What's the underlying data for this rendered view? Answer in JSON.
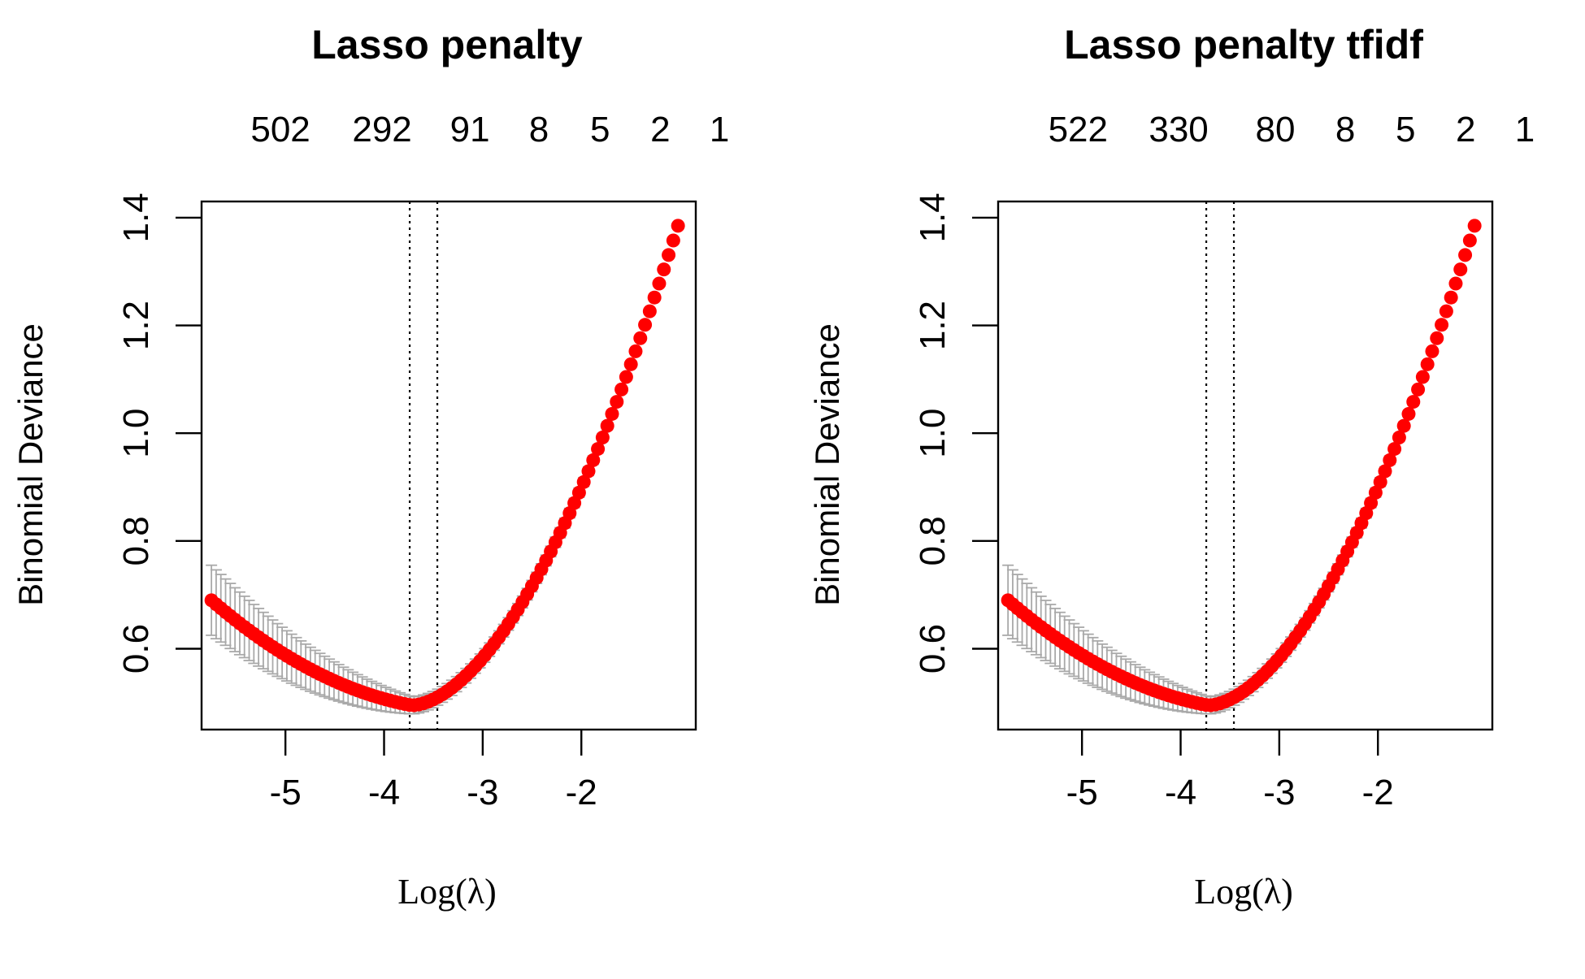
{
  "charts": [
    {
      "title": "Lasso penalty"
    },
    {
      "title": "Lasso penalty tfidf"
    }
  ],
  "chart_data": [
    {
      "type": "scatter",
      "title": "Lasso penalty",
      "xlabel": "Log(λ)",
      "ylabel": "Binomial Deviance",
      "xlim": [
        -5.85,
        -0.84
      ],
      "ylim": [
        0.45,
        1.43
      ],
      "x_ticks": [
        -5,
        -4,
        -3,
        -2
      ],
      "x_tick_labels": [
        "-5",
        "-4",
        "-3",
        "-2"
      ],
      "y_ticks": [
        0.6,
        0.8,
        1.0,
        1.2,
        1.4
      ],
      "y_tick_labels": [
        "0.6",
        "0.8",
        "1.0",
        "1.2",
        "1.4"
      ],
      "top_axis": {
        "positions": [
          -5.05,
          -4.02,
          -3.13,
          -2.43,
          -1.81,
          -1.2,
          -0.6
        ],
        "labels": [
          "502",
          "292",
          "91",
          "8",
          "5",
          "2",
          "1"
        ]
      },
      "vlines": [
        -3.74,
        -3.46
      ],
      "grid": false,
      "series": [
        {
          "color": "#ff0000",
          "error_color": "#a9a9a9",
          "curve": {
            "x_start": -5.75,
            "x_end": -1.02,
            "n": 100,
            "x_min": -3.72,
            "y_min": 0.495,
            "left_y": 0.69,
            "right_y": 1.385,
            "right_power": 1.75,
            "se_left": 0.065,
            "se_right": 0.004,
            "se_min": 0.016
          }
        }
      ]
    },
    {
      "type": "scatter",
      "title": "Lasso penalty tfidf",
      "xlabel": "Log(λ)",
      "ylabel": "Binomial Deviance",
      "xlim": [
        -5.85,
        -0.84
      ],
      "ylim": [
        0.45,
        1.43
      ],
      "x_ticks": [
        -5,
        -4,
        -3,
        -2
      ],
      "x_tick_labels": [
        "-5",
        "-4",
        "-3",
        "-2"
      ],
      "y_ticks": [
        0.6,
        0.8,
        1.0,
        1.2,
        1.4
      ],
      "y_tick_labels": [
        "0.6",
        "0.8",
        "1.0",
        "1.2",
        "1.4"
      ],
      "top_axis": {
        "positions": [
          -5.04,
          -4.02,
          -3.04,
          -2.33,
          -1.72,
          -1.11,
          -0.51
        ],
        "labels": [
          "522",
          "330",
          "80",
          "8",
          "5",
          "2",
          "1"
        ]
      },
      "vlines": [
        -3.74,
        -3.46
      ],
      "grid": false,
      "series": [
        {
          "color": "#ff0000",
          "error_color": "#a9a9a9",
          "curve": {
            "x_start": -5.75,
            "x_end": -1.02,
            "n": 100,
            "x_min": -3.72,
            "y_min": 0.495,
            "left_y": 0.69,
            "right_y": 1.385,
            "right_power": 1.75,
            "se_left": 0.065,
            "se_right": 0.004,
            "se_min": 0.016
          }
        }
      ]
    }
  ]
}
